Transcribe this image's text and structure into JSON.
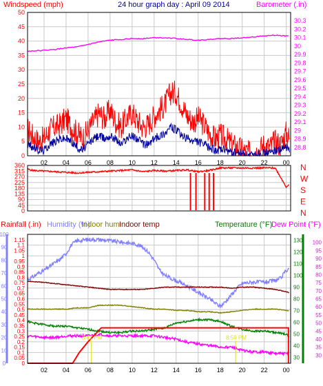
{
  "colors": {
    "background": "#ffffff",
    "grid": "#c8c8c8",
    "axis": "#000000",
    "wind_avg": "#0000a0",
    "wind_gust": "#ff0000",
    "barometer": "#ff00ff",
    "wind_dir": "#ff0000",
    "title": "#0000a0",
    "rain_label": "#ff0000",
    "humidity": "#8080ff",
    "indoor_hum": "#808000",
    "indoor_temp": "#800000",
    "temperature": "#008000",
    "dewpoint": "#ff00ff",
    "rainfall": "#ff0000",
    "annotation": "#e0e000"
  },
  "chart_data": [
    {
      "type": "line",
      "title": "24 hour graph day : April 09 2014",
      "ylabel_left": "Windspeed (mph)",
      "ylabel_right": "Barometer (.in)",
      "x_ticks": [
        "02",
        "04",
        "06",
        "08",
        "10",
        "12",
        "14",
        "16",
        "18",
        "20",
        "22",
        "00"
      ],
      "x_range": [
        0.5,
        24.4
      ],
      "ylim_left": [
        0,
        50
      ],
      "yticks_left": [
        0,
        5,
        10,
        15,
        20,
        25,
        30,
        35,
        40,
        45,
        50
      ],
      "ylim_right": [
        28.7,
        30.4
      ],
      "yticks_right": [
        "28.8",
        "28.9",
        "29",
        "29.1",
        "29.2",
        "29.3",
        "29.4",
        "29.5",
        "29.6",
        "29.7",
        "29.8",
        "29.9",
        "30",
        "30.1",
        "30.2",
        "30.3"
      ],
      "grid": true,
      "series": [
        {
          "key": "wind_gust",
          "axis": "left",
          "hours": [
            0.5,
            1,
            1.5,
            2,
            2.5,
            3,
            3.5,
            4,
            4.5,
            5,
            5.5,
            6,
            6.5,
            7,
            7.5,
            8,
            8.5,
            9,
            9.5,
            10,
            10.5,
            11,
            11.5,
            12,
            12.5,
            13,
            13.5,
            14,
            14.5,
            15,
            15.5,
            16,
            16.5,
            17,
            17.5,
            18,
            18.5,
            19,
            19.5,
            20,
            20.5,
            21,
            21.5,
            22,
            22.5,
            23,
            23.5,
            24,
            24.3
          ],
          "values": [
            9,
            7,
            5,
            6,
            9,
            10,
            11,
            13,
            10,
            8,
            6,
            9,
            12,
            15,
            13,
            16,
            12,
            10,
            13,
            15,
            12,
            10,
            11,
            14,
            16,
            18,
            22,
            22,
            18,
            14,
            12,
            13,
            11,
            8,
            6,
            7,
            6,
            4,
            3,
            2,
            1,
            1,
            2,
            4,
            3,
            5,
            4,
            8,
            6
          ]
        },
        {
          "key": "wind_avg",
          "axis": "left",
          "hours": [
            0.5,
            1,
            1.5,
            2,
            2.5,
            3,
            3.5,
            4,
            4.5,
            5,
            5.5,
            6,
            6.5,
            7,
            7.5,
            8,
            8.5,
            9,
            9.5,
            10,
            10.5,
            11,
            11.5,
            12,
            12.5,
            13,
            13.5,
            14,
            14.5,
            15,
            15.5,
            16,
            16.5,
            17,
            17.5,
            18,
            18.5,
            19,
            19.5,
            20,
            20.5,
            21,
            21.5,
            22,
            22.5,
            23,
            23.5,
            24,
            24.3
          ],
          "values": [
            4,
            3,
            2,
            2,
            4,
            5,
            6,
            6,
            5,
            3,
            2,
            4,
            6,
            7,
            6,
            7,
            6,
            4,
            6,
            7,
            6,
            4,
            4,
            6,
            7,
            8,
            10,
            9,
            7,
            6,
            5,
            5,
            4,
            3,
            2,
            2,
            2,
            1,
            1,
            1,
            0,
            0,
            1,
            1,
            1,
            2,
            2,
            3,
            2
          ]
        },
        {
          "key": "barometer",
          "axis": "right",
          "hours": [
            0.5,
            2,
            3,
            4,
            5,
            6,
            7,
            8,
            9,
            10,
            11,
            12,
            13,
            14,
            15,
            16,
            17,
            18,
            19,
            20,
            21,
            22,
            23,
            24,
            24.3
          ],
          "values": [
            29.94,
            29.95,
            29.96,
            29.98,
            29.99,
            30.02,
            30.05,
            30.07,
            30.08,
            30.09,
            30.09,
            30.1,
            30.1,
            30.09,
            30.08,
            30.07,
            30.08,
            30.09,
            30.09,
            30.1,
            30.11,
            30.12,
            30.13,
            30.12,
            30.12
          ]
        }
      ]
    },
    {
      "type": "line",
      "ytick_labels": [
        "360",
        "315",
        "270",
        "225",
        "180",
        "135",
        "90",
        "45",
        "0"
      ],
      "ylim": [
        0,
        360
      ],
      "compass_labels": [
        "N",
        "W",
        "S",
        "E",
        "N"
      ],
      "series": [
        {
          "key": "wind_dir",
          "hours": [
            0.5,
            1,
            2,
            3,
            4,
            5,
            6,
            7,
            8,
            9,
            10,
            11,
            12,
            13,
            14,
            15,
            15.3,
            16,
            17,
            17.5,
            18,
            19,
            20,
            21,
            22,
            23,
            24,
            24.3
          ],
          "values": [
            330,
            320,
            315,
            310,
            305,
            300,
            305,
            310,
            315,
            320,
            325,
            310,
            320,
            315,
            320,
            325,
            320,
            310,
            320,
            330,
            340,
            340,
            340,
            340,
            340,
            340,
            190,
            215
          ]
        }
      ],
      "dips": [
        15.3,
        15.8,
        16.6,
        17.0,
        17.4
      ]
    },
    {
      "type": "line",
      "ylabel_left": [
        "Rainfall (.in)",
        "Humidity (%)",
        "Indoor hum",
        "Indoor temp"
      ],
      "ylabel_right": [
        "Temperature (°F)",
        "Dew Point (°F)"
      ],
      "x_ticks": [
        "02",
        "04",
        "06",
        "08",
        "10",
        "12",
        "14",
        "16",
        "18",
        "20",
        "22",
        "00"
      ],
      "ylim_rain": [
        0,
        1.2
      ],
      "yticks_rain": [
        "0",
        "0.05",
        "0.1",
        "0.15",
        "0.2",
        "0.25",
        "0.3",
        "0.35",
        "0.4",
        "0.45",
        "0.5",
        "0.55",
        "0.6",
        "0.65",
        "0.7",
        "0.75",
        "0.8",
        "0.85",
        "0.9",
        "0.95",
        "1",
        "1.05",
        "1.1",
        "1.15"
      ],
      "ylim_humidity": [
        0,
        100
      ],
      "yticks_humidity": [
        "0",
        "10",
        "20",
        "30",
        "40",
        "50",
        "60",
        "70",
        "80",
        "90",
        "100"
      ],
      "ylim_indoor_temp": [
        25,
        135
      ],
      "yticks_indoor_temp": [
        "30",
        "40",
        "50",
        "60",
        "70",
        "80",
        "90",
        "100",
        "110",
        "120",
        "130"
      ],
      "ylim_temp": [
        25,
        105
      ],
      "yticks_temp": [
        "30",
        "35",
        "40",
        "45",
        "50",
        "55",
        "60",
        "65",
        "70",
        "75",
        "80",
        "85",
        "90",
        "95",
        "100"
      ],
      "annotations": [
        {
          "text": "3:41 PM",
          "hour": 6.3,
          "value_temp": 39
        },
        {
          "text": "8:59 PM",
          "hour": 19.4,
          "value_temp": 39
        }
      ],
      "series": [
        {
          "key": "humidity",
          "axis": "humidity",
          "hours": [
            0.5,
            1,
            1.5,
            2,
            2.5,
            3,
            3.5,
            4,
            4.5,
            5,
            6,
            7,
            8,
            9,
            10,
            10.5,
            11,
            11.5,
            12,
            12.5,
            13,
            14,
            15,
            16,
            17,
            17.5,
            18,
            18.5,
            19,
            19.5,
            20,
            21,
            22,
            23,
            23.5,
            24,
            24.3
          ],
          "values": [
            65,
            67,
            70,
            72,
            75,
            78,
            81,
            85,
            92,
            95,
            96,
            96,
            95,
            94,
            93,
            92,
            90,
            86,
            80,
            72,
            68,
            64,
            60,
            55,
            50,
            47,
            44,
            48,
            53,
            58,
            62,
            63,
            63,
            64,
            66,
            72,
            74
          ]
        },
        {
          "key": "indoor_hum",
          "axis": "humidity",
          "hours": [
            0.5,
            2,
            3,
            4,
            5,
            6,
            7,
            8,
            9,
            10,
            11,
            12,
            13,
            14,
            15,
            16,
            17,
            18,
            19,
            20,
            21,
            22,
            23,
            24,
            24.3
          ],
          "values": [
            42,
            42,
            42,
            42,
            43,
            43,
            45,
            45,
            45,
            44,
            43,
            42,
            42,
            41,
            41,
            40,
            40,
            39,
            40,
            41,
            42,
            42,
            42,
            41,
            41
          ]
        },
        {
          "key": "indoor_temp",
          "axis": "indoor_temp",
          "hours": [
            0.5,
            2,
            3,
            4,
            5,
            6,
            7,
            8,
            9,
            10,
            11,
            12,
            13,
            14,
            15,
            16,
            17,
            18,
            19,
            20,
            21,
            22,
            23,
            24,
            24.3
          ],
          "values": [
            95,
            94,
            93,
            92,
            91,
            90,
            89,
            88,
            88,
            88,
            88,
            89,
            90,
            90,
            90,
            90,
            90,
            90,
            89,
            90,
            90,
            89,
            88,
            86,
            85
          ]
        },
        {
          "key": "temperature",
          "axis": "temp",
          "hours": [
            0.5,
            1,
            2,
            3,
            4,
            5,
            6,
            7,
            8,
            9,
            10,
            11,
            12,
            13,
            14,
            15,
            16,
            17,
            18,
            19,
            20,
            21,
            22,
            23,
            24,
            24.3
          ],
          "values": [
            51,
            50,
            49,
            48,
            48,
            47,
            46,
            45,
            44,
            44,
            45,
            45,
            46,
            47,
            50,
            51,
            52,
            52,
            51,
            48,
            46,
            45,
            45,
            44,
            43,
            41
          ]
        },
        {
          "key": "dewpoint",
          "axis": "temp",
          "hours": [
            0.5,
            2,
            3,
            4,
            5,
            6,
            7,
            8,
            9,
            10,
            11,
            12,
            13,
            14,
            15,
            16,
            17,
            18,
            19,
            20,
            21,
            22,
            23,
            24,
            24.3
          ],
          "values": [
            42,
            41,
            41,
            42,
            42,
            42,
            43,
            42,
            42,
            42,
            42,
            42,
            41,
            40,
            38,
            37,
            36,
            35,
            35,
            33,
            32,
            32,
            31,
            31,
            31
          ]
        },
        {
          "key": "rainfall",
          "axis": "rain",
          "hours": [
            0.5,
            4.6,
            5.2,
            6.0,
            7.2,
            18.5,
            24.2,
            24.2
          ],
          "values": [
            0,
            0,
            0.1,
            0.2,
            0.33,
            0.33,
            0.33,
            0
          ]
        }
      ]
    }
  ]
}
